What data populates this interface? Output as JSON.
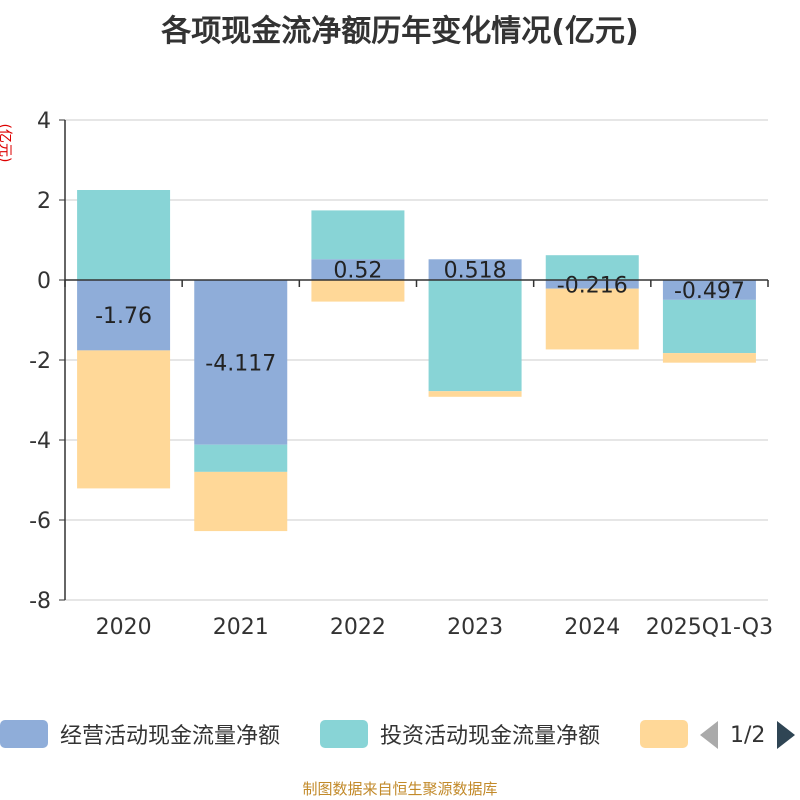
{
  "chart_data": {
    "type": "bar",
    "stacked": true,
    "title": "各项现金流净额历年变化情况(亿元)",
    "ylabel": "(亿元)",
    "ylim": [
      -8,
      4
    ],
    "yticks": [
      4,
      2,
      0,
      -2,
      -4,
      -6,
      -8
    ],
    "categories": [
      "2020",
      "2021",
      "2022",
      "2023",
      "2024",
      "2025Q1-Q3"
    ],
    "series": [
      {
        "name": "经营活动现金流量净额",
        "color": "#8fadd9",
        "values": [
          -1.76,
          -4.117,
          0.52,
          0.518,
          -0.216,
          -0.497
        ]
      },
      {
        "name": "投资活动现金流量净额",
        "color": "#88d4d6",
        "values": [
          2.25,
          -0.68,
          1.22,
          -2.78,
          0.62,
          -1.33
        ]
      },
      {
        "name": "",
        "color": "#ffd898",
        "values": [
          -3.45,
          -1.48,
          -0.54,
          -0.14,
          -1.52,
          -0.24
        ]
      }
    ],
    "data_labels": [
      "-1.76",
      "-4.117",
      "0.52",
      "0.518",
      "-0.216",
      "-0.497"
    ],
    "legend_position": "bottom"
  },
  "legend": {
    "items": [
      {
        "label": "经营活动现金流量净额",
        "color": "#8fadd9"
      },
      {
        "label": "投资活动现金流量净额",
        "color": "#88d4d6"
      },
      {
        "label": "",
        "color": "#ffd898"
      }
    ],
    "page_text": "1/2"
  },
  "source": "制图数据来自恒生聚源数据库"
}
